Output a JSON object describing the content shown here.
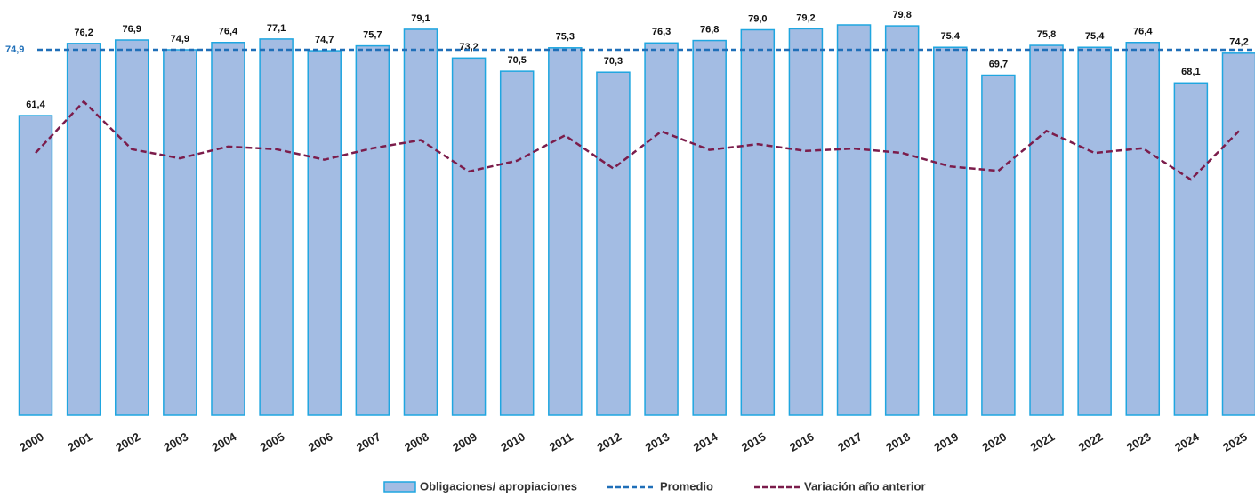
{
  "chart_data": {
    "type": "bar",
    "categories": [
      "2000",
      "2001",
      "2002",
      "2003",
      "2004",
      "2005",
      "2006",
      "2007",
      "2008",
      "2009",
      "2010",
      "2011",
      "2012",
      "2013",
      "2014",
      "2015",
      "2016",
      "2017",
      "2018",
      "2019",
      "2020",
      "2021",
      "2022",
      "2023",
      "2024",
      "2025"
    ],
    "series": [
      {
        "name": "Obligaciones/ apropiaciones",
        "color": "#a3bce3",
        "stroke": "#1fa6e0",
        "values": [
          61.4,
          76.2,
          76.9,
          74.9,
          76.4,
          77.1,
          74.7,
          75.7,
          79.1,
          73.2,
          70.5,
          75.3,
          70.3,
          76.3,
          76.8,
          79.0,
          79.2,
          80.0,
          79.8,
          75.4,
          69.7,
          75.8,
          75.4,
          76.4,
          68.1,
          74.2
        ],
        "value_labels": [
          "61,4",
          "76,2",
          "76,9",
          "74,9",
          "76,4",
          "77,1",
          "74,7",
          "75,7",
          "79,1",
          "73,2",
          "70,5",
          "75,3",
          "70,3",
          "76,3",
          "76,8",
          "79,0",
          "79,2",
          null,
          "79,8",
          "75,4",
          "69,7",
          "75,8",
          "75,4",
          "76,4",
          "68,1",
          "74,2"
        ]
      },
      {
        "name": "Variación año anterior",
        "type": "line",
        "axis": "y2",
        "color": "#7b1c4b",
        "values": [
          -0.4,
          14.8,
          0.7,
          -2.0,
          1.5,
          0.7,
          -2.4,
          1.0,
          3.4,
          -5.9,
          -2.7,
          4.8,
          -5.0,
          6.0,
          0.5,
          2.2,
          0.2,
          0.9,
          -0.4,
          -4.4,
          -5.7,
          6.1,
          -0.4,
          1.0,
          -8.3,
          6.1
        ]
      }
    ],
    "average": {
      "name": "Promedio",
      "value": 74.9,
      "label": "74,9",
      "color": "#1f6fb8"
    },
    "ylim": [
      0,
      80
    ],
    "y2lim": [
      -78,
      37.5
    ]
  }
}
